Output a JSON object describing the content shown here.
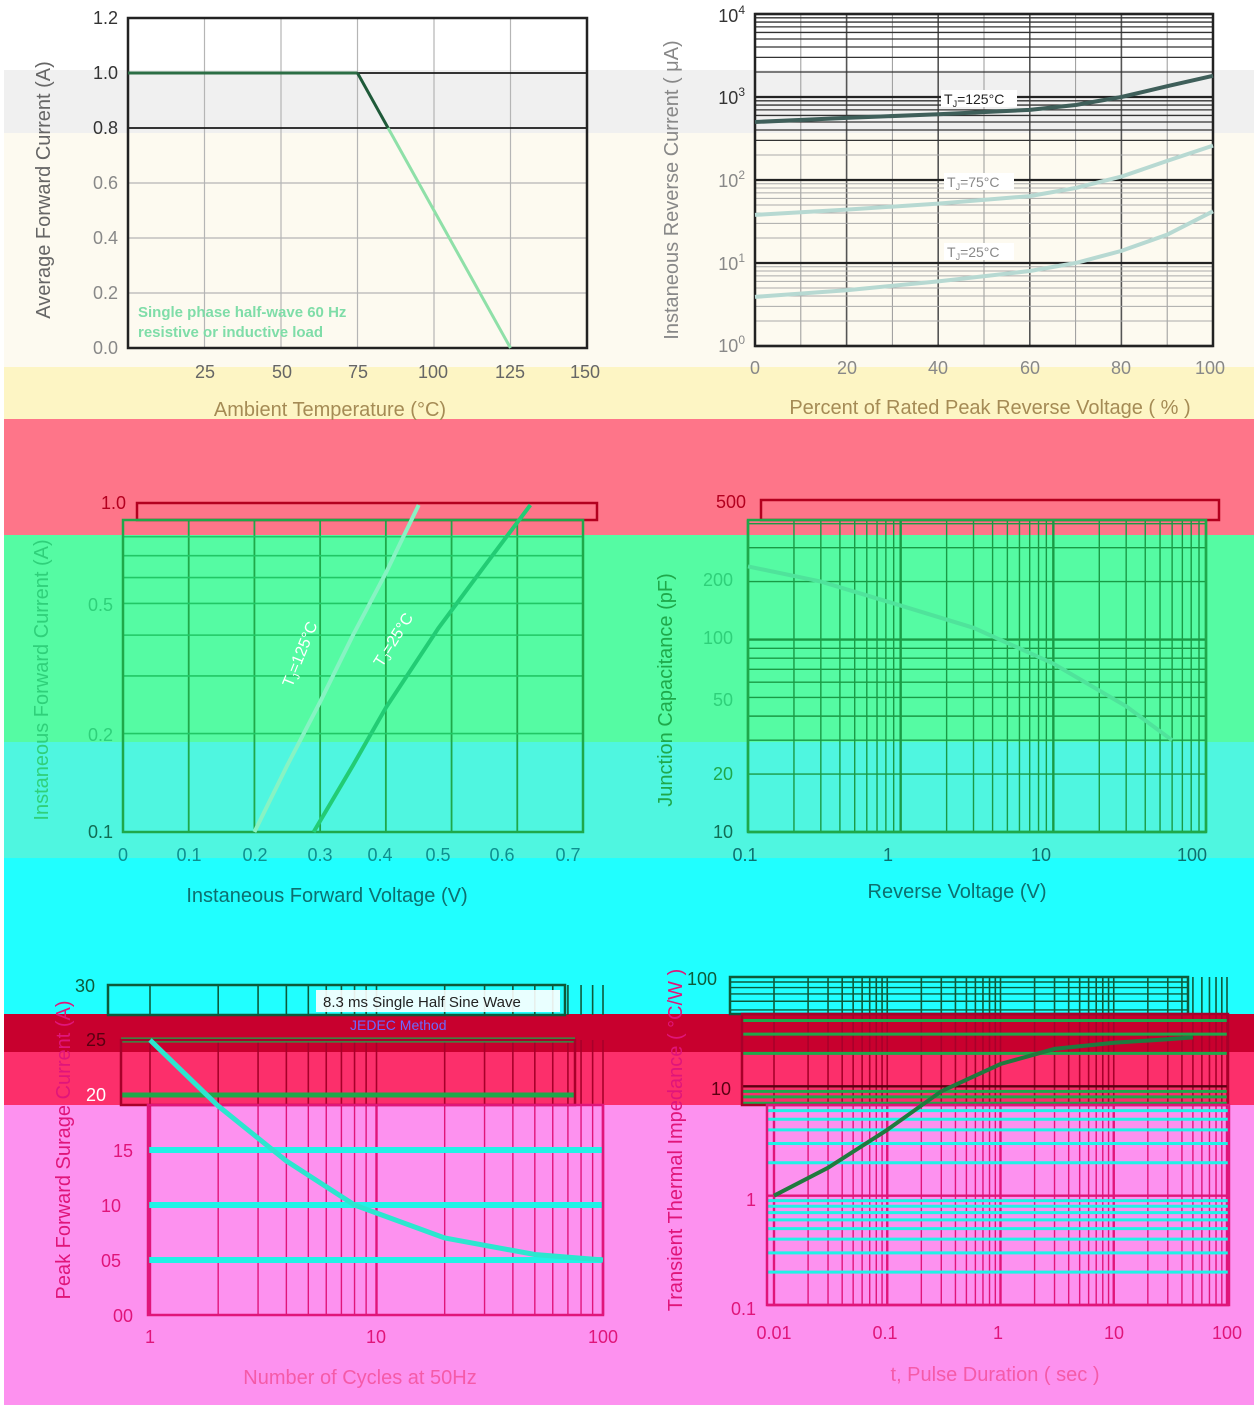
{
  "colors": {
    "band_gray": "#f0f0f0",
    "band_cream": "#fdfaf0",
    "band_yellow": "#fdf5c4",
    "band_red": "#fe7589",
    "band_green": "#55fba3",
    "band_teal": "#4ff6e0",
    "band_cyan": "#20ffff",
    "band_crimson": "#c8002e",
    "band_rose": "#fc2f6b",
    "band_pink": "#fd91ef",
    "text_gray": "#666666",
    "text_olive": "#a58b55"
  },
  "chart_data": [
    {
      "id": "derating",
      "type": "line",
      "title": "",
      "xlabel": "Ambient  Temperature (°C)",
      "ylabel": "Average Forward Current (A)",
      "xlim": [
        0,
        150
      ],
      "ylim": [
        0,
        1.2
      ],
      "x_ticks": [
        "25",
        "50",
        "75",
        "100",
        "125",
        "150"
      ],
      "y_ticks": [
        "0.0",
        "0.2",
        "0.4",
        "0.6",
        "0.8",
        "1.0",
        "1.2"
      ],
      "annotation": [
        "Single phase half-wave 60 Hz",
        "resistive or inductive load"
      ],
      "grid": true,
      "series": [
        {
          "x": [
            0,
            75,
            125
          ],
          "y": [
            1.0,
            1.0,
            0.0
          ]
        }
      ]
    },
    {
      "id": "reverse-current",
      "type": "line",
      "xlabel": "Percent of Rated Peak Reverse Voltage ( % )",
      "ylabel": "Instaneous Reverse Current ( μA)",
      "xlim": [
        0,
        100
      ],
      "ylim": [
        1,
        10000
      ],
      "yscale": "log",
      "x_ticks": [
        "0",
        "20",
        "40",
        "60",
        "80",
        "100"
      ],
      "y_ticks": [
        [
          "10",
          "0"
        ],
        [
          "10",
          "1"
        ],
        [
          "10",
          "2"
        ],
        [
          "10",
          "3"
        ],
        [
          "10",
          "4"
        ]
      ],
      "grid": true,
      "series": [
        {
          "name": "TJ=125°C",
          "x": [
            0,
            20,
            40,
            60,
            70,
            80,
            90,
            100
          ],
          "y": [
            500,
            560,
            620,
            700,
            800,
            1000,
            1350,
            1800
          ]
        },
        {
          "name": "TJ=75°C",
          "x": [
            0,
            20,
            40,
            60,
            70,
            80,
            90,
            100
          ],
          "y": [
            38,
            44,
            52,
            64,
            80,
            110,
            170,
            260
          ]
        },
        {
          "name": "TJ=25°C",
          "x": [
            0,
            20,
            40,
            60,
            70,
            80,
            90,
            100
          ],
          "y": [
            3.9,
            4.7,
            6.0,
            8.0,
            10,
            14,
            22,
            42
          ]
        }
      ],
      "labels": {
        "t125": "T",
        "t75": "T",
        "t25": "T",
        "sub": "J",
        "v125": "=125°C",
        "v75": "=75°C",
        "v25": "=25°C"
      }
    },
    {
      "id": "forward-characteristics",
      "type": "line",
      "xlabel": "Instaneous Forward Voltage (V)",
      "ylabel": "Instaneous Forward Current (A)",
      "xlim": [
        0,
        0.7
      ],
      "ylim": [
        0.1,
        1.0
      ],
      "yscale": "log",
      "x_ticks": [
        "0",
        "0.1",
        "0.2",
        "0.3",
        "0.4",
        "0.5",
        "0.6",
        "0.7"
      ],
      "y_ticks": [
        "0.1",
        "0.2",
        "0.5",
        "1.0"
      ],
      "grid": true,
      "series": [
        {
          "name": "TJ=125°C",
          "x": [
            0.2,
            0.25,
            0.3,
            0.35,
            0.4,
            0.45
          ],
          "y": [
            0.1,
            0.16,
            0.25,
            0.4,
            0.62,
            1.0
          ]
        },
        {
          "name": "TJ=25°C",
          "x": [
            0.29,
            0.35,
            0.4,
            0.48,
            0.55,
            0.62
          ],
          "y": [
            0.1,
            0.16,
            0.24,
            0.42,
            0.65,
            1.0
          ]
        }
      ],
      "labels": {
        "t125": "T",
        "t25": "T",
        "sub": "J",
        "v125": "=125°C",
        "v25": "=25°C"
      }
    },
    {
      "id": "junction-capacitance",
      "type": "line",
      "xlabel": "Reverse  Voltage (V)",
      "ylabel": "Junction Capacitance (pF)",
      "xlim": [
        0.1,
        100
      ],
      "ylim": [
        10,
        500
      ],
      "xscale": "log",
      "yscale": "log",
      "x_ticks": [
        "0.1",
        "1",
        "10",
        "100"
      ],
      "y_ticks": [
        "10",
        "20",
        "50",
        "100",
        "200",
        "500"
      ],
      "grid": true,
      "series": [
        {
          "x": [
            0.1,
            0.3,
            1,
            3,
            10,
            30,
            60
          ],
          "y": [
            240,
            200,
            150,
            115,
            75,
            45,
            30
          ]
        }
      ]
    },
    {
      "id": "surge-current",
      "type": "line",
      "xlabel": "Number of Cycles at 50Hz",
      "ylabel": "Peak Forward Surage Current (A)",
      "xlim": [
        1,
        100
      ],
      "ylim": [
        0,
        30
      ],
      "xscale": "log",
      "x_ticks": [
        "1",
        "10",
        "100"
      ],
      "y_ticks": [
        "00",
        "05",
        "10",
        "15",
        "20",
        "25",
        "30"
      ],
      "annotation": [
        "8.3 ms Single Half Sine Wave",
        "JEDEC Method"
      ],
      "grid": true,
      "series": [
        {
          "x": [
            1,
            2,
            4,
            8,
            20,
            50,
            100
          ],
          "y": [
            25,
            19,
            14,
            10,
            7,
            5.5,
            5
          ]
        }
      ]
    },
    {
      "id": "thermal-impedance",
      "type": "line",
      "xlabel": "t, Pulse Duration ( sec )",
      "ylabel": "Transient Thermal Impedance ( °C/W )",
      "xlim": [
        0.01,
        100
      ],
      "ylim": [
        0.1,
        100
      ],
      "xscale": "log",
      "yscale": "log",
      "x_ticks": [
        "0.01",
        "0.1",
        "1",
        "10",
        "100"
      ],
      "y_ticks": [
        "0.1",
        "1",
        "10",
        "100"
      ],
      "grid": true,
      "series": [
        {
          "x": [
            0.01,
            0.03,
            0.1,
            0.3,
            1,
            3,
            10,
            30,
            50
          ],
          "y": [
            1,
            1.8,
            4,
            9,
            16,
            22,
            25,
            27,
            28
          ]
        }
      ]
    }
  ]
}
